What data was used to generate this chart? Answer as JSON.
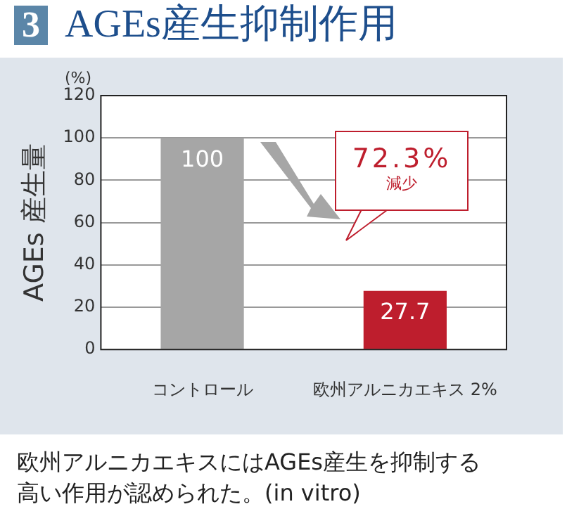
{
  "chart_data": {
    "type": "bar",
    "title": "AGEs産生抑制作用",
    "ylabel": "AGEs 産生量",
    "categories": [
      "コントロール",
      "欧州アルニカエキス 2%"
    ],
    "values": [
      100,
      27.7
    ],
    "colors": [
      "#a6a6a6",
      "#be1e2d"
    ],
    "ylim": [
      0,
      120
    ],
    "yticks": [
      0,
      20,
      40,
      60,
      80,
      100,
      120
    ],
    "grid": "y",
    "data_labels": true,
    "legend": false,
    "annotations": [
      "3",
      "(%)",
      "72.3%",
      "減少",
      "欧州アルニカエキスにはAGEs産生を抑制する高い作用が認められた。(in vitro)"
    ]
  }
}
